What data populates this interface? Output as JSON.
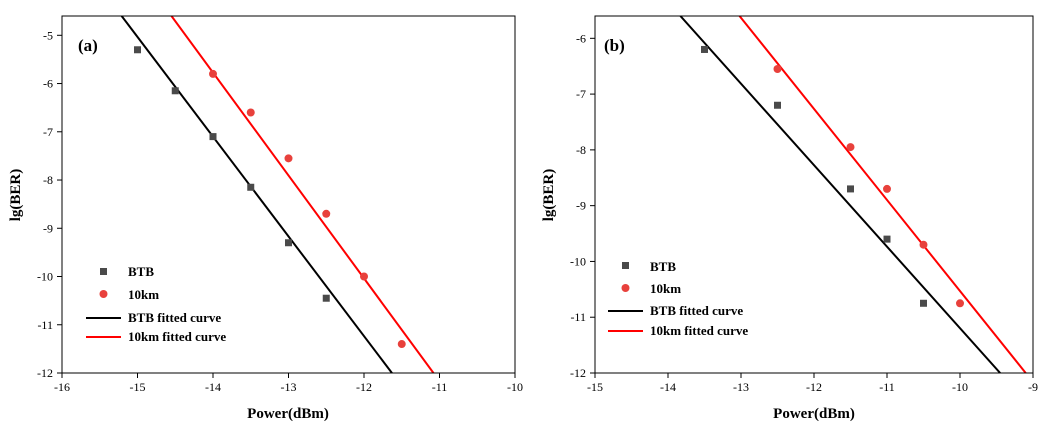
{
  "chart_data": [
    {
      "type": "scatter",
      "panel_label": "(a)",
      "xlabel": "Power(dBm)",
      "ylabel": "lg(BER)",
      "xlim": [
        -16,
        -10
      ],
      "ylim": [
        -12,
        -4.6
      ],
      "xticks": [
        -16,
        -15,
        -14,
        -13,
        -12,
        -11,
        -10
      ],
      "yticks": [
        -12,
        -11,
        -10,
        -9,
        -8,
        -7,
        -6,
        -5
      ],
      "legend_position": "bottom-left",
      "series": [
        {
          "name": "BTB",
          "kind": "points",
          "marker": "square",
          "color": "#4a4a4a",
          "x": [
            -15,
            -14.5,
            -14,
            -13.5,
            -13,
            -12.5
          ],
          "y": [
            -5.3,
            -6.15,
            -7.1,
            -8.15,
            -9.3,
            -10.45
          ]
        },
        {
          "name": "10km",
          "kind": "points",
          "marker": "circle",
          "color": "#e8413c",
          "x": [
            -14,
            -13.5,
            -13,
            -12.5,
            -12,
            -11.5
          ],
          "y": [
            -5.8,
            -6.6,
            -7.55,
            -8.7,
            -10.0,
            -11.4
          ]
        },
        {
          "name": "BTB fitted curve",
          "kind": "line",
          "color": "#000000",
          "x": [
            -15.21,
            -11.63
          ],
          "y": [
            -4.6,
            -12
          ]
        },
        {
          "name": "10km fitted curve",
          "kind": "line",
          "color": "#ff0000",
          "x": [
            -14.55,
            -11.08
          ],
          "y": [
            -4.6,
            -12
          ]
        }
      ]
    },
    {
      "type": "scatter",
      "panel_label": "(b)",
      "xlabel": "Power(dBm)",
      "ylabel": "lg(BER)",
      "xlim": [
        -15,
        -9
      ],
      "ylim": [
        -12,
        -5.6
      ],
      "xticks": [
        -15,
        -14,
        -13,
        -12,
        -11,
        -10,
        -9
      ],
      "yticks": [
        -12,
        -11,
        -10,
        -9,
        -8,
        -7,
        -6
      ],
      "legend_position": "bottom-left",
      "series": [
        {
          "name": "BTB",
          "kind": "points",
          "marker": "square",
          "color": "#4a4a4a",
          "x": [
            -13.5,
            -12.5,
            -11.5,
            -11,
            -10.5
          ],
          "y": [
            -6.2,
            -7.2,
            -8.7,
            -9.6,
            -10.75
          ]
        },
        {
          "name": "10km",
          "kind": "points",
          "marker": "circle",
          "color": "#e8413c",
          "x": [
            -12.5,
            -11.5,
            -11,
            -10.5,
            -10
          ],
          "y": [
            -6.55,
            -7.95,
            -8.7,
            -9.7,
            -10.75
          ]
        },
        {
          "name": "BTB fitted curve",
          "kind": "line",
          "color": "#000000",
          "x": [
            -13.83,
            -9.45
          ],
          "y": [
            -5.6,
            -12
          ]
        },
        {
          "name": "10km fitted curve",
          "kind": "line",
          "color": "#ff0000",
          "x": [
            -13.02,
            -9.1
          ],
          "y": [
            -5.6,
            -12
          ]
        }
      ]
    }
  ]
}
